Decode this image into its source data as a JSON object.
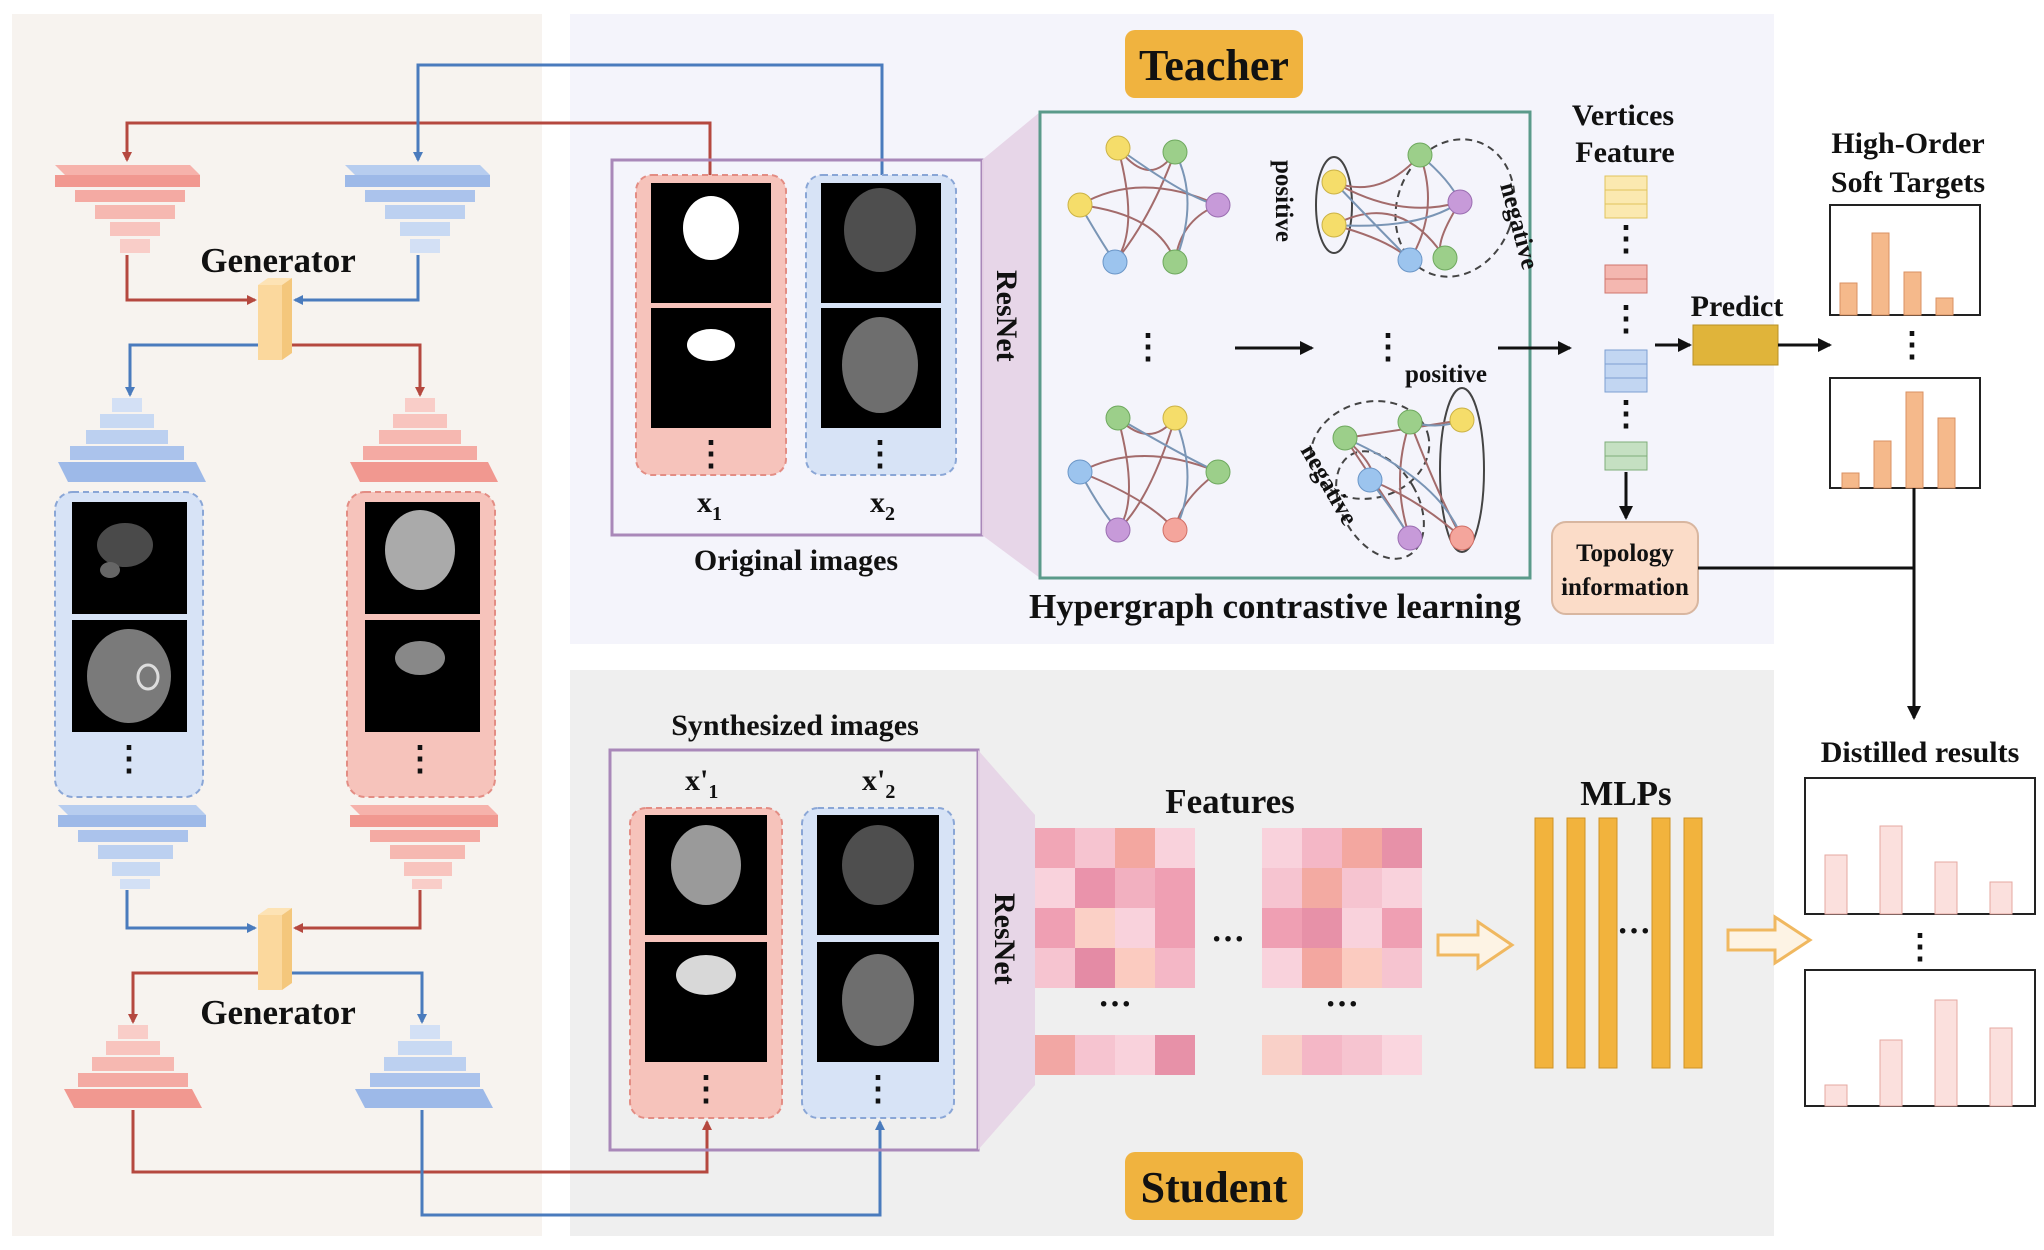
{
  "teacher": {
    "title": "Teacher",
    "original_images_label": "Original images",
    "x1_label": "x",
    "x1_sub": "1",
    "x2_label": "x",
    "x2_sub": "2",
    "resnet_label": "ResNet",
    "hypergraph_label": "Hypergraph contrastive learning",
    "positive_top": "positive",
    "negative_top": "negative",
    "positive_bottom": "positive",
    "negative_bottom": "negative",
    "vertices_feature_line1": "Vertices",
    "vertices_feature_line2": "Feature",
    "predict_label": "Predict",
    "topology_line1": "Topology",
    "topology_line2": "information",
    "soft_targets_line1": "High-Order",
    "soft_targets_line2": "Soft Targets"
  },
  "student": {
    "title": "Student",
    "synth_images_label": "Synthesized images",
    "x1p_label": "x'",
    "x1p_sub": "1",
    "x2p_label": "x'",
    "x2p_sub": "2",
    "resnet_label": "ResNet",
    "features_label": "Features",
    "mlps_label": "MLPs",
    "distilled_label": "Distilled results"
  },
  "generator": {
    "top_label": "Generator",
    "bottom_label": "Generator"
  },
  "ellipsis": {
    "vertical": "⋮",
    "horizontal": "···"
  },
  "colors": {
    "red": "#c0504d",
    "blue": "#4f81bd",
    "teacher_bg": "#f4f4fb",
    "student_bg": "#efefef",
    "left_bg": "#f7f3ef",
    "orange": "#f0b33f",
    "predict": "#e0b43a"
  }
}
